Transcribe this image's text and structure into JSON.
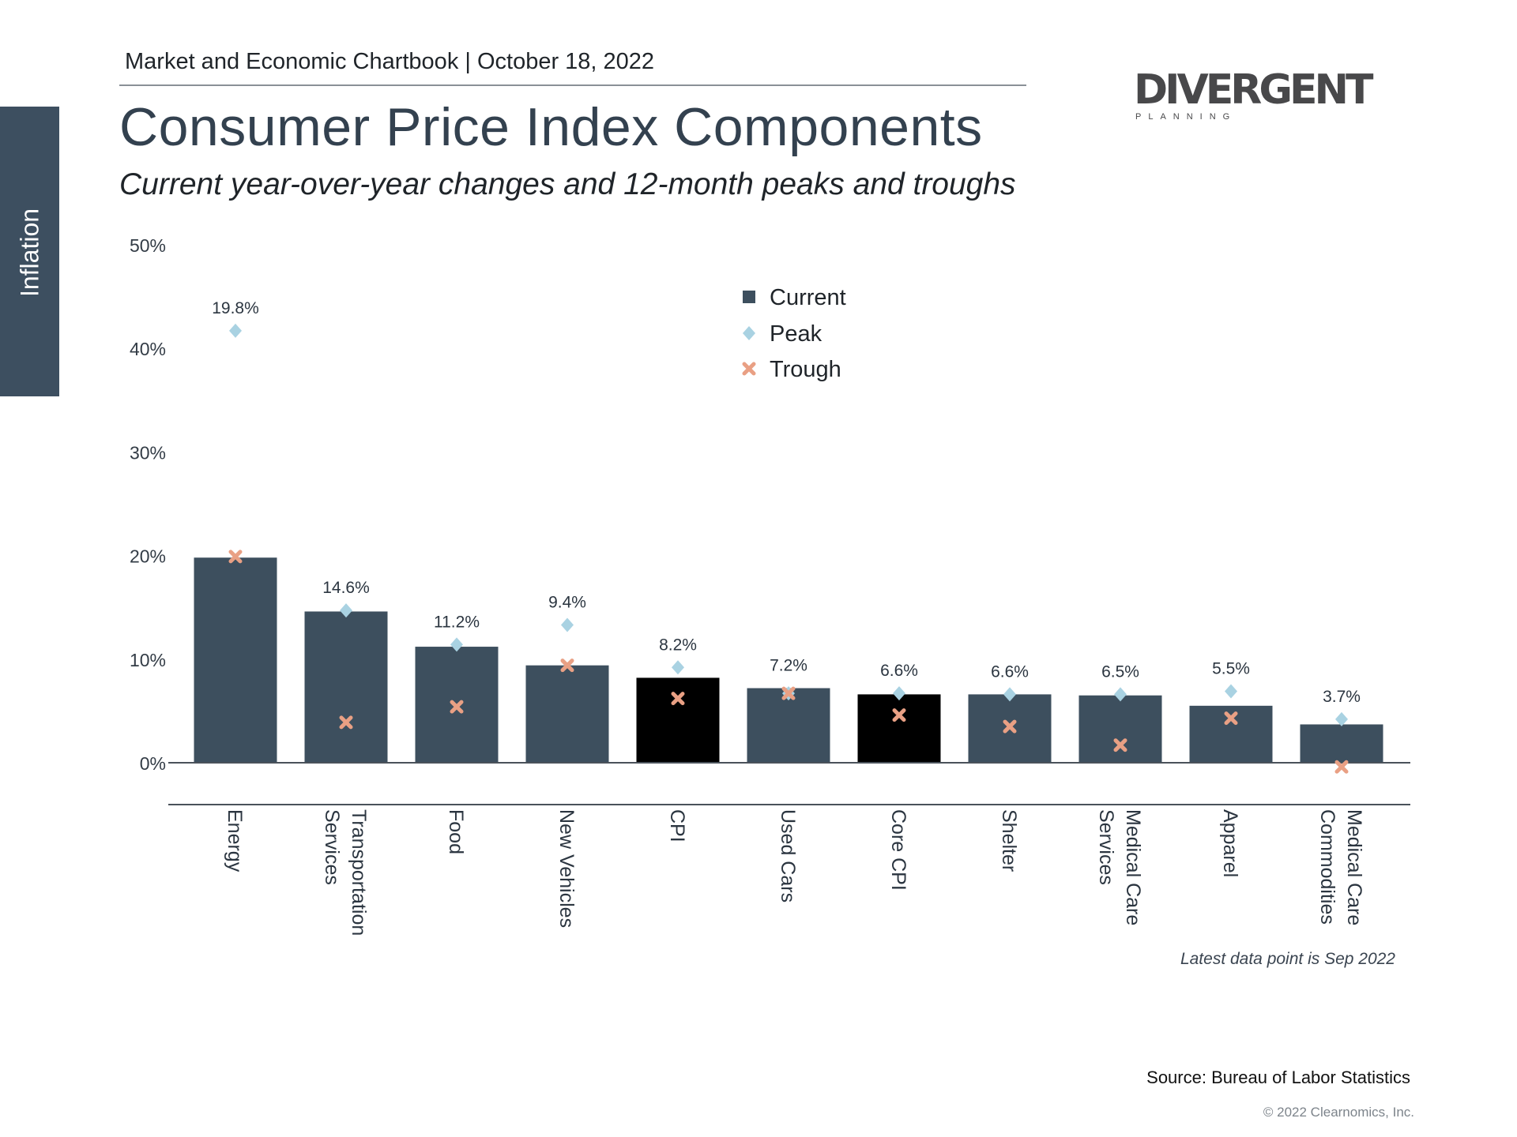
{
  "header": {
    "text": "Market and Economic Chartbook | October 18, 2022"
  },
  "sidebar": {
    "label": "Inflation"
  },
  "logo": {
    "word": "DIVERGENT",
    "sub": "PLANNING"
  },
  "colors": {
    "bar": "#3d4f5e",
    "highlight": "#000000",
    "peak": "#a9d2e2",
    "trough": "#e9a084",
    "sidebar": "#3d4f60"
  },
  "chart_data": {
    "type": "bar",
    "title": "Consumer Price Index Components",
    "subtitle": "Current year-over-year changes and 12-month peaks and troughs",
    "categories": [
      "Energy",
      "Transportation Services",
      "Food",
      "New Vehicles",
      "CPI",
      "Used Cars",
      "Core CPI",
      "Shelter",
      "Medical Care Services",
      "Apparel",
      "Medical Care Commodities"
    ],
    "category_lines": [
      [
        "Energy"
      ],
      [
        "Transportation",
        "Services"
      ],
      [
        "Food"
      ],
      [
        "New Vehicles"
      ],
      [
        "CPI"
      ],
      [
        "Used Cars"
      ],
      [
        "Core CPI"
      ],
      [
        "Shelter"
      ],
      [
        "Medical Care",
        "Services"
      ],
      [
        "Apparel"
      ],
      [
        "Medical Care",
        "Commodities"
      ]
    ],
    "highlighted": [
      "CPI",
      "Core CPI"
    ],
    "series": [
      {
        "name": "Current",
        "type": "bar",
        "values": [
          19.8,
          14.6,
          11.2,
          9.4,
          8.2,
          7.2,
          6.6,
          6.6,
          6.5,
          5.5,
          3.7
        ]
      },
      {
        "name": "Peak",
        "type": "scatter",
        "marker": "diamond",
        "values": [
          41.7,
          14.7,
          11.4,
          13.3,
          9.2,
          6.7,
          6.7,
          6.6,
          6.6,
          6.9,
          4.2
        ]
      },
      {
        "name": "Trough",
        "type": "scatter",
        "marker": "x",
        "values": [
          19.9,
          3.9,
          5.4,
          9.4,
          6.2,
          6.7,
          4.6,
          3.5,
          1.7,
          4.3,
          -0.4
        ]
      }
    ],
    "data_labels": [
      "19.8%",
      "14.6%",
      "11.2%",
      "9.4%",
      "8.2%",
      "7.2%",
      "6.6%",
      "6.6%",
      "6.5%",
      "5.5%",
      "3.7%"
    ],
    "yticks": [
      "0%",
      "10%",
      "20%",
      "30%",
      "40%",
      "50%"
    ],
    "ytick_values": [
      0,
      10,
      20,
      30,
      40,
      50
    ],
    "ylim": [
      0,
      50
    ],
    "grid": false,
    "legend": {
      "placement": "top-center",
      "entries": [
        "Current",
        "Peak",
        "Trough"
      ]
    },
    "note": "Latest data point is Sep 2022"
  },
  "footer": {
    "source": "Source: Bureau of Labor Statistics",
    "copyright": "© 2022 Clearnomics, Inc."
  }
}
